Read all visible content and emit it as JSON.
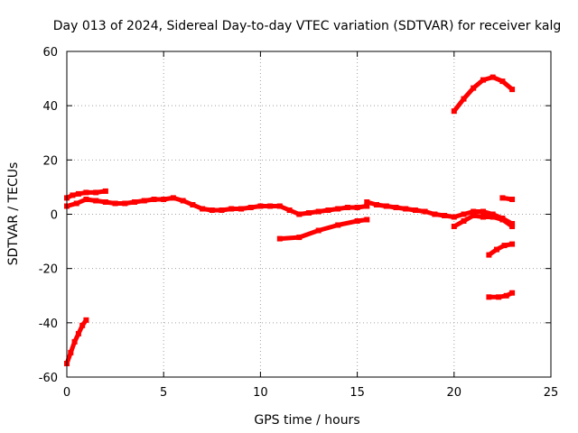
{
  "chart_data": {
    "type": "line",
    "title": "Day 013 of 2024, Sidereal Day-to-day VTEC variation (SDTVAR) for receiver kalg",
    "xlabel": "GPS time / hours",
    "ylabel": "SDTVAR / TECUs",
    "xlim": [
      0,
      25
    ],
    "ylim": [
      -60,
      60
    ],
    "xticks": [
      0,
      5,
      10,
      15,
      20,
      25
    ],
    "yticks": [
      -60,
      -40,
      -20,
      0,
      20,
      40,
      60
    ],
    "grid": true,
    "color": "#ff0000",
    "series": [
      {
        "name": "trace-1",
        "x": [
          0.0,
          0.2,
          0.4,
          0.6,
          0.8,
          1.0
        ],
        "y": [
          -55,
          -51,
          -47,
          -44,
          -41,
          -39
        ]
      },
      {
        "name": "trace-2",
        "x": [
          0.0,
          0.3,
          0.6,
          1.0,
          1.5,
          2.0
        ],
        "y": [
          6,
          7,
          7.5,
          8,
          8,
          8.5
        ]
      },
      {
        "name": "trace-3",
        "x": [
          0.0,
          0.5,
          1.0,
          1.5,
          2.0,
          2.5,
          3.0,
          3.5,
          4.0,
          4.5,
          5.0,
          5.5,
          6.0,
          6.5,
          7.0,
          7.5,
          8.0,
          8.5,
          9.0,
          9.5,
          10.0,
          10.5,
          11.0,
          11.5,
          12.0,
          12.5,
          13.0,
          13.5,
          14.0,
          14.5,
          15.0,
          15.5
        ],
        "y": [
          3,
          4,
          5.5,
          5,
          4.5,
          4,
          4,
          4.5,
          5,
          5.5,
          5.5,
          6,
          5,
          3.5,
          2,
          1.5,
          1.5,
          2,
          2,
          2.5,
          3,
          3,
          3,
          1.5,
          0,
          0.5,
          1,
          1.5,
          2,
          2.5,
          2.5,
          3
        ]
      },
      {
        "name": "trace-4",
        "x": [
          15.5,
          16.0,
          16.5,
          17.0,
          17.5,
          18.0,
          18.5,
          19.0,
          19.5,
          20.0,
          20.5,
          21.0,
          21.5,
          22.0,
          22.5,
          23.0
        ],
        "y": [
          4.5,
          3.5,
          3,
          2.5,
          2,
          1.5,
          1,
          0,
          -0.5,
          -1,
          0,
          1,
          1,
          0,
          -1.5,
          -3.5
        ]
      },
      {
        "name": "trace-5",
        "x": [
          11.0,
          12.0,
          13.0,
          14.0,
          15.0,
          15.5
        ],
        "y": [
          -9,
          -8.5,
          -6,
          -4,
          -2.5,
          -2
        ]
      },
      {
        "name": "trace-6",
        "x": [
          20.0,
          20.5,
          21.0,
          21.5,
          22.0,
          22.5,
          23.0
        ],
        "y": [
          -4.5,
          -2.5,
          -0.5,
          -1,
          -1,
          -2,
          -4.5
        ]
      },
      {
        "name": "trace-7",
        "x": [
          20.0,
          20.5,
          21.0,
          21.5,
          22.0,
          22.5,
          23.0
        ],
        "y": [
          38,
          42.5,
          46.5,
          49.5,
          50.5,
          49,
          46
        ]
      },
      {
        "name": "trace-8",
        "x": [
          22.5,
          23.0
        ],
        "y": [
          6,
          5.5
        ]
      },
      {
        "name": "trace-9",
        "x": [
          21.8,
          22.2,
          22.6,
          23.0
        ],
        "y": [
          -15,
          -13,
          -11.5,
          -11
        ]
      },
      {
        "name": "trace-10",
        "x": [
          21.8,
          22.3,
          22.7,
          23.0
        ],
        "y": [
          -30.5,
          -30.5,
          -30,
          -29
        ]
      }
    ]
  }
}
